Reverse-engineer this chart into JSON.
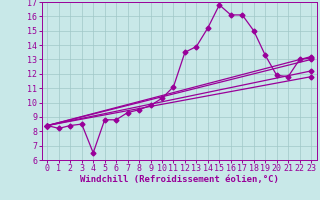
{
  "xlabel": "Windchill (Refroidissement éolien,°C)",
  "bg_color": "#c8e8e8",
  "line_color": "#990099",
  "grid_color": "#a0c8c8",
  "xlim": [
    -0.5,
    23.5
  ],
  "ylim": [
    6,
    17
  ],
  "xticks": [
    0,
    1,
    2,
    3,
    4,
    5,
    6,
    7,
    8,
    9,
    10,
    11,
    12,
    13,
    14,
    15,
    16,
    17,
    18,
    19,
    20,
    21,
    22,
    23
  ],
  "yticks": [
    6,
    7,
    8,
    9,
    10,
    11,
    12,
    13,
    14,
    15,
    16,
    17
  ],
  "main_line": {
    "x": [
      0,
      1,
      2,
      3,
      4,
      5,
      6,
      7,
      8,
      9,
      10,
      11,
      12,
      13,
      14,
      15,
      16,
      17,
      18,
      19,
      20,
      21,
      22,
      23
    ],
    "y": [
      8.4,
      8.2,
      8.4,
      8.5,
      6.5,
      8.8,
      8.8,
      9.3,
      9.5,
      9.8,
      10.3,
      11.1,
      13.5,
      13.9,
      15.2,
      16.8,
      16.1,
      16.1,
      15.0,
      13.3,
      11.9,
      11.8,
      13.0,
      13.1
    ]
  },
  "straight_lines": [
    {
      "x": [
        0,
        23
      ],
      "y": [
        8.4,
        13.2
      ]
    },
    {
      "x": [
        0,
        23
      ],
      "y": [
        8.4,
        13.0
      ]
    },
    {
      "x": [
        0,
        23
      ],
      "y": [
        8.4,
        12.2
      ]
    },
    {
      "x": [
        0,
        23
      ],
      "y": [
        8.4,
        11.8
      ]
    }
  ],
  "marker": "D",
  "marker_size": 2.5,
  "line_width": 0.9,
  "font_size_label": 6.5,
  "font_size_tick": 6
}
